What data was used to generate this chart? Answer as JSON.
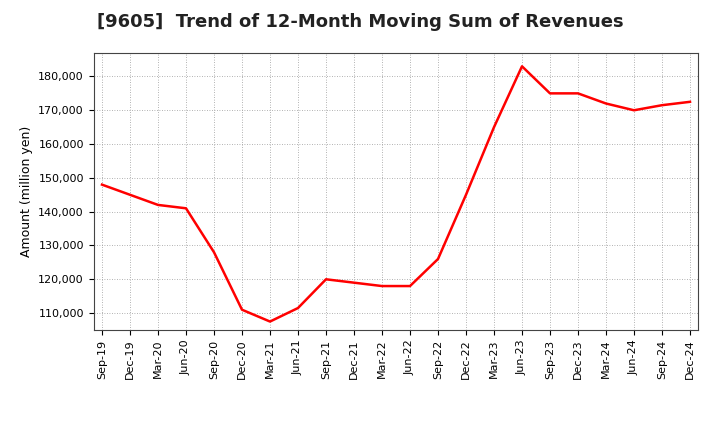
{
  "title": "[9605]  Trend of 12-Month Moving Sum of Revenues",
  "ylabel": "Amount (million yen)",
  "line_color": "#ff0000",
  "bg_color": "#ffffff",
  "plot_bg_color": "#ffffff",
  "grid_color": "#999999",
  "title_color": "#222222",
  "x_labels": [
    "Sep-19",
    "Dec-19",
    "Mar-20",
    "Jun-20",
    "Sep-20",
    "Dec-20",
    "Mar-21",
    "Jun-21",
    "Sep-21",
    "Dec-21",
    "Mar-22",
    "Jun-22",
    "Sep-22",
    "Dec-22",
    "Mar-23",
    "Jun-23",
    "Sep-23",
    "Dec-23",
    "Mar-24",
    "Jun-24",
    "Sep-24",
    "Dec-24"
  ],
  "values": [
    148000,
    145000,
    142000,
    141000,
    128000,
    111000,
    107500,
    111500,
    120000,
    119000,
    118000,
    118000,
    126000,
    145000,
    165000,
    183000,
    175000,
    175000,
    172000,
    170000,
    171500,
    172500
  ],
  "ylim_min": 105000,
  "ylim_max": 187000,
  "yticks": [
    110000,
    120000,
    130000,
    140000,
    150000,
    160000,
    170000,
    180000
  ],
  "linewidth": 1.8,
  "title_fontsize": 13,
  "axis_label_fontsize": 9,
  "tick_fontsize": 8
}
